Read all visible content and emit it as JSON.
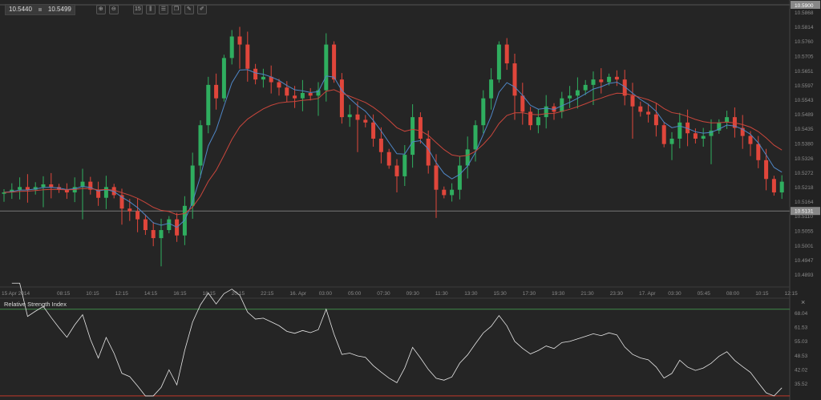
{
  "toolbar": {
    "bid": "10.5440",
    "ask": "10.5499",
    "icons": [
      "zoom-in-icon",
      "zoom-out-icon",
      "timeframe-icon",
      "indicators-icon",
      "settings-icon",
      "copy-icon",
      "edit-icon",
      "draw-icon"
    ],
    "timeframe_label": "15"
  },
  "colors": {
    "up": "#2fae5f",
    "down": "#e0463b",
    "ma_fast": "#4f86c6",
    "ma_slow": "#c9463c",
    "rsi": "#e6e6e6",
    "rsi_upper": "#3f8a4a",
    "rsi_lower": "#c0392b",
    "bg": "#252525"
  },
  "chart_data": [
    {
      "type": "candlestick",
      "title": "",
      "ylim": [
        10.486,
        10.59
      ],
      "price_ticks": [
        "10.5868",
        "10.5814",
        "10.5760",
        "10.5705",
        "10.5651",
        "10.5597",
        "10.5543",
        "10.5489",
        "10.5435",
        "10.5380",
        "10.5326",
        "10.5272",
        "10.5218",
        "10.5164",
        "10.5110",
        "10.5055",
        "10.5001",
        "10.4947",
        "10.4893"
      ],
      "top_label": "10.5900",
      "current_price": "10.5131",
      "time_ticks": [
        "15 Apr 2014",
        "08:15",
        "10:15",
        "12:15",
        "14:15",
        "16:15",
        "18:15",
        "20:15",
        "22:15",
        "16. Apr",
        "03:00",
        "05:00",
        "07:30",
        "09:30",
        "11:30",
        "13:30",
        "15:30",
        "17:30",
        "19:30",
        "21:30",
        "23:30",
        "17. Apr",
        "03:30",
        "05:45",
        "08:00",
        "10:15",
        "12:15"
      ],
      "closes": [
        10.52,
        10.521,
        10.522,
        10.521,
        10.522,
        10.523,
        10.522,
        10.521,
        10.52,
        10.522,
        10.524,
        10.521,
        10.518,
        10.522,
        10.519,
        10.514,
        10.513,
        10.51,
        10.506,
        10.503,
        10.506,
        10.51,
        10.504,
        10.515,
        10.53,
        10.545,
        10.56,
        10.555,
        10.57,
        10.578,
        10.575,
        10.566,
        10.562,
        10.563,
        10.561,
        10.559,
        10.556,
        10.555,
        10.557,
        10.556,
        10.558,
        10.575,
        10.562,
        10.548,
        10.549,
        10.547,
        10.546,
        10.54,
        10.535,
        10.53,
        10.526,
        10.534,
        10.548,
        10.54,
        10.53,
        10.521,
        10.519,
        10.521,
        10.53,
        10.536,
        10.545,
        10.555,
        10.562,
        10.575,
        10.568,
        10.556,
        10.55,
        10.545,
        10.548,
        10.552,
        10.55,
        10.555,
        10.556,
        10.558,
        10.56,
        10.562,
        10.561,
        10.563,
        10.562,
        10.556,
        10.552,
        10.55,
        10.549,
        10.545,
        10.538,
        10.54,
        10.546,
        10.542,
        10.54,
        10.541,
        10.543,
        10.546,
        10.548,
        10.544,
        10.541,
        10.538,
        10.532,
        10.525,
        10.52,
        10.524
      ],
      "moving_averages": [
        {
          "name": "fast",
          "period": 5
        },
        {
          "name": "slow",
          "period": 14
        }
      ]
    },
    {
      "type": "line",
      "title": "Relative Strength Index",
      "period": 14,
      "ylim": [
        26,
        90
      ],
      "levels": [
        70,
        30
      ],
      "ticks": [
        "68.04",
        "61.53",
        "55.03",
        "48.53",
        "42.02",
        "35.52"
      ]
    }
  ],
  "close_label": "×"
}
